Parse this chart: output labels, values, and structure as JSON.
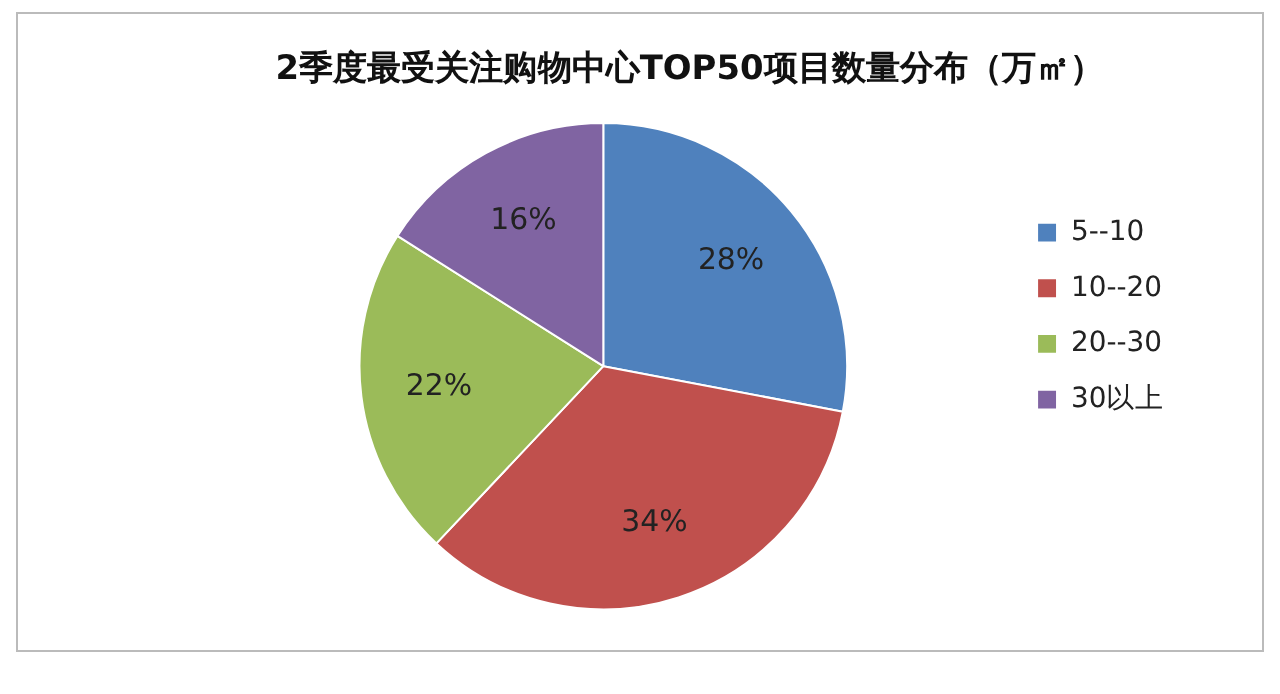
{
  "chart_data": {
    "type": "pie",
    "title": "2季度最受关注购物中心TOP50项目数量分布（万㎡）",
    "categories": [
      "5--10",
      "10--20",
      "20--30",
      "30以上"
    ],
    "values": [
      28,
      34,
      22,
      16
    ],
    "colors": [
      "#4f81bd",
      "#c0504d",
      "#9bbb59",
      "#8064a2"
    ],
    "value_labels": [
      "28%",
      "34%",
      "22%",
      "16%"
    ],
    "legend": "right"
  }
}
